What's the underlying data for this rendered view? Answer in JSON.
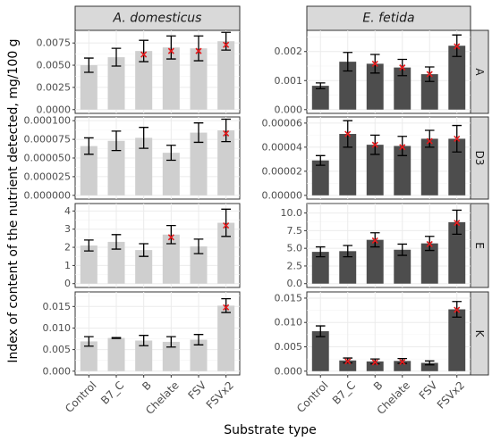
{
  "chart_data": {
    "type": "bar",
    "xlabel": "Substrate type",
    "ylabel": "Index of content of the nutrient detected, mg/100 g",
    "categories": [
      "Control",
      "B7_C",
      "B",
      "Chelate",
      "FSV",
      "FSVx2"
    ],
    "columns": [
      "A. domesticus",
      "E. fetida"
    ],
    "rows": [
      "A",
      "D3",
      "E",
      "K"
    ],
    "colors": {
      "A. domesticus": "#cfcfcf",
      "E. fetida": "#4d4d4d",
      "marker": "#e41a1c"
    },
    "panels": [
      {
        "column": "A. domesticus",
        "row": "A",
        "ylim": [
          0,
          0.0085
        ],
        "ticks": [
          0,
          0.0025,
          0.005,
          0.0075
        ],
        "tick_labels": [
          "0.0000",
          "0.0025",
          "0.0050",
          "0.0075"
        ],
        "values": [
          0.005,
          0.0059,
          0.0066,
          0.007,
          0.0069,
          0.0077
        ],
        "errors": [
          0.0008,
          0.001,
          0.0012,
          0.0013,
          0.0014,
          0.001
        ],
        "markers": [
          null,
          null,
          0.0062,
          0.0066,
          0.0066,
          0.0073
        ]
      },
      {
        "column": "E. fetida",
        "row": "A",
        "ylim": [
          0,
          0.0026
        ],
        "ticks": [
          0,
          0.001,
          0.002
        ],
        "tick_labels": [
          "0.000",
          "0.001",
          "0.002"
        ],
        "values": [
          0.00082,
          0.00165,
          0.00158,
          0.00145,
          0.00122,
          0.0022
        ],
        "errors": [
          0.0001,
          0.00032,
          0.00032,
          0.00028,
          0.00025,
          0.00037
        ],
        "markers": [
          null,
          null,
          0.00158,
          0.00145,
          0.00122,
          0.00218
        ]
      },
      {
        "column": "A. domesticus",
        "row": "D3",
        "ylim": [
          0,
          0.0001
        ],
        "ticks": [
          0,
          2.5e-05,
          5e-05,
          7.5e-05,
          0.0001
        ],
        "tick_labels": [
          "0.000000",
          "0.000025",
          "0.000050",
          "0.000075",
          "0.000100"
        ],
        "values": [
          6.6e-05,
          7.3e-05,
          7.7e-05,
          5.7e-05,
          8.4e-05,
          8.7e-05
        ],
        "errors": [
          1.1e-05,
          1.3e-05,
          1.4e-05,
          1e-05,
          1.3e-05,
          1.5e-05
        ],
        "markers": [
          null,
          null,
          null,
          null,
          null,
          8.3e-05
        ]
      },
      {
        "column": "E. fetida",
        "row": "D3",
        "ylim": [
          0,
          6.2e-05
        ],
        "ticks": [
          0,
          2e-05,
          4e-05,
          6e-05
        ],
        "tick_labels": [
          "0.00000",
          "0.00002",
          "0.00004",
          "0.00006"
        ],
        "values": [
          2.9e-05,
          5.1e-05,
          4.2e-05,
          4.1e-05,
          4.7e-05,
          4.7e-05
        ],
        "errors": [
          4e-06,
          1.1e-05,
          8e-06,
          8e-06,
          7e-06,
          1.1e-05
        ],
        "markers": [
          null,
          5.1e-05,
          4.2e-05,
          4e-05,
          4.5e-05,
          4.7e-05
        ]
      },
      {
        "column": "A. domesticus",
        "row": "E",
        "ylim": [
          0,
          4.2
        ],
        "ticks": [
          0,
          1,
          2,
          3,
          4
        ],
        "tick_labels": [
          "0",
          "1",
          "2",
          "3",
          "4"
        ],
        "values": [
          2.1,
          2.3,
          1.85,
          2.7,
          2.05,
          3.35
        ],
        "errors": [
          0.3,
          0.4,
          0.35,
          0.5,
          0.4,
          0.75
        ],
        "markers": [
          null,
          null,
          null,
          2.55,
          null,
          3.2
        ]
      },
      {
        "column": "E. fetida",
        "row": "E",
        "ylim": [
          0,
          10.8
        ],
        "ticks": [
          0,
          2.5,
          5,
          7.5,
          10
        ],
        "tick_labels": [
          "0.0",
          "2.5",
          "5.0",
          "7.5",
          "10.0"
        ],
        "values": [
          4.5,
          4.6,
          6.2,
          4.8,
          5.7,
          8.7
        ],
        "errors": [
          0.7,
          0.8,
          1.0,
          0.8,
          1.0,
          1.7
        ],
        "markers": [
          null,
          null,
          6.1,
          null,
          5.6,
          8.6
        ]
      },
      {
        "column": "A. domesticus",
        "row": "K",
        "ylim": [
          0,
          0.0175
        ],
        "ticks": [
          0,
          0.005,
          0.01,
          0.015
        ],
        "tick_labels": [
          "0.000",
          "0.005",
          "0.010",
          "0.015"
        ],
        "values": [
          0.0069,
          0.0077,
          0.0071,
          0.0068,
          0.0073,
          0.0152
        ],
        "errors": [
          0.0011,
          0.0001,
          0.0012,
          0.0012,
          0.0012,
          0.0016
        ],
        "markers": [
          null,
          null,
          null,
          null,
          null,
          0.0148
        ]
      },
      {
        "column": "E. fetida",
        "row": "K",
        "ylim": [
          0,
          0.0155
        ],
        "ticks": [
          0,
          0.005,
          0.01,
          0.015
        ],
        "tick_labels": [
          "0.000",
          "0.005",
          "0.010",
          "0.015"
        ],
        "values": [
          0.0082,
          0.0022,
          0.002,
          0.0021,
          0.0017,
          0.0127
        ],
        "errors": [
          0.0011,
          0.0005,
          0.0005,
          0.0005,
          0.0004,
          0.0016
        ],
        "markers": [
          null,
          0.002,
          0.0018,
          0.0019,
          null,
          0.0126
        ]
      }
    ]
  }
}
